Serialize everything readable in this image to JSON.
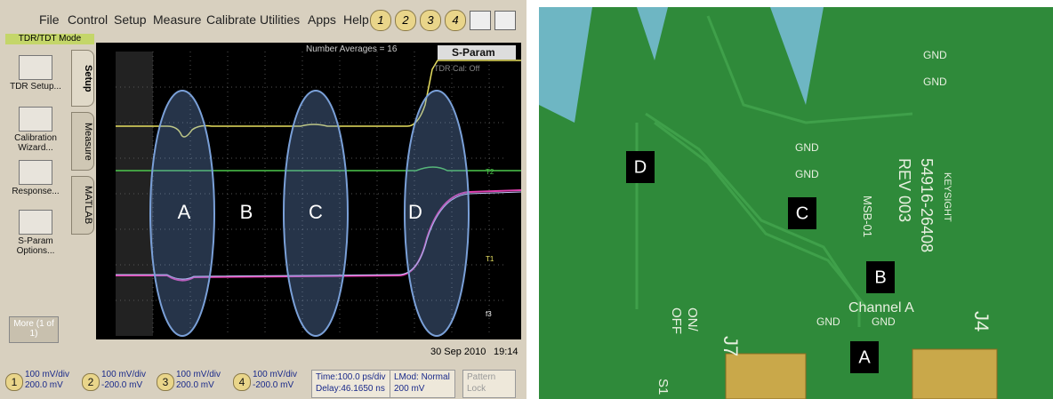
{
  "scope": {
    "menu": [
      "File",
      "Control",
      "Setup",
      "Measure",
      "Calibrate",
      "Utilities",
      "Apps",
      "Help"
    ],
    "channel_buttons": [
      "1",
      "2",
      "3",
      "4"
    ],
    "mode": "TDR/TDT Mode",
    "side_buttons": [
      "TDR Setup...",
      "Calibration Wizard...",
      "Response...",
      "S-Param Options..."
    ],
    "more": "More (1 of 1)",
    "tabs": [
      "Setup",
      "Measure",
      "MATLAB"
    ],
    "averages": "Number Averages = 16",
    "sparam": "S-Param",
    "tdr_cal": "TDR Cal: Off",
    "markers": [
      "T2",
      "T1",
      "f3"
    ],
    "regions": [
      "A",
      "B",
      "C",
      "D"
    ],
    "date": "30 Sep 2010",
    "time": "19:14",
    "channels": [
      {
        "number": "1",
        "scale": "100 mV/div",
        "offset": "200.0 mV"
      },
      {
        "number": "2",
        "scale": "100 mV/div",
        "offset": "-200.0 mV"
      },
      {
        "number": "3",
        "scale": "100 mV/div",
        "offset": "200.0 mV"
      },
      {
        "number": "4",
        "scale": "100 mV/div",
        "offset": "-200.0 mV"
      }
    ],
    "timebase": "Time:100.0 ps/div",
    "delay": "Delay:46.1650 ns",
    "lmod": "LMod: Normal",
    "lmod_level": "200 mV",
    "pattern_lock": "Pattern Lock"
  },
  "board": {
    "regions": [
      "D",
      "C",
      "B",
      "A"
    ],
    "gnd": [
      "GND",
      "GND",
      "GND",
      "GND",
      "GND",
      "GND"
    ],
    "part_number": "54916-26408",
    "revision": "REV 003",
    "brand": "KEYSIGHT",
    "board_name": "MSB-01",
    "channel": "Channel A",
    "connectors": [
      "J7",
      "J4"
    ],
    "switch_on": "ON/",
    "switch_off": "OFF",
    "switch": "S1"
  }
}
